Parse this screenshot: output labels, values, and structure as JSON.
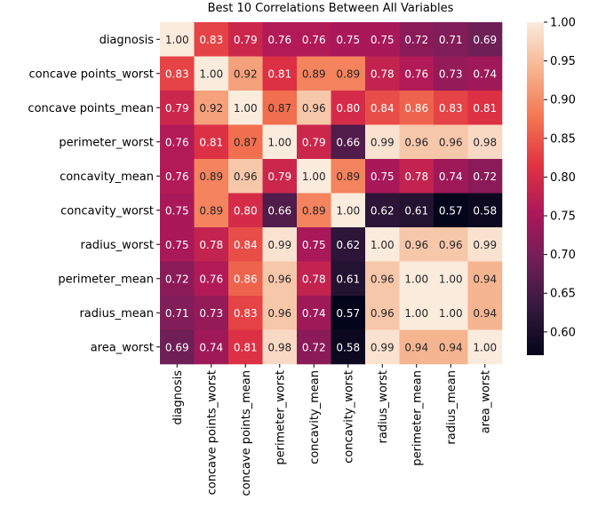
{
  "chart_data": {
    "type": "heatmap",
    "title": "Best 10 Correlations Between All Variables",
    "row_labels": [
      "diagnosis",
      "concave points_worst",
      "concave points_mean",
      "perimeter_worst",
      "concavity_mean",
      "concavity_worst",
      "radius_worst",
      "perimeter_mean",
      "radius_mean",
      "area_worst"
    ],
    "col_labels": [
      "diagnosis",
      "concave points_worst",
      "concave points_mean",
      "perimeter_worst",
      "concavity_mean",
      "concavity_worst",
      "radius_worst",
      "perimeter_mean",
      "radius_mean",
      "area_worst"
    ],
    "values": [
      [
        1.0,
        0.83,
        0.79,
        0.76,
        0.76,
        0.75,
        0.75,
        0.72,
        0.71,
        0.69
      ],
      [
        0.83,
        1.0,
        0.92,
        0.81,
        0.89,
        0.89,
        0.78,
        0.76,
        0.73,
        0.74
      ],
      [
        0.79,
        0.92,
        1.0,
        0.87,
        0.96,
        0.8,
        0.84,
        0.86,
        0.83,
        0.81
      ],
      [
        0.76,
        0.81,
        0.87,
        1.0,
        0.79,
        0.66,
        0.99,
        0.96,
        0.96,
        0.98
      ],
      [
        0.76,
        0.89,
        0.96,
        0.79,
        1.0,
        0.89,
        0.75,
        0.78,
        0.74,
        0.72
      ],
      [
        0.75,
        0.89,
        0.8,
        0.66,
        0.89,
        1.0,
        0.62,
        0.61,
        0.57,
        0.58
      ],
      [
        0.75,
        0.78,
        0.84,
        0.99,
        0.75,
        0.62,
        1.0,
        0.96,
        0.96,
        0.99
      ],
      [
        0.72,
        0.76,
        0.86,
        0.96,
        0.78,
        0.61,
        0.96,
        1.0,
        1.0,
        0.94
      ],
      [
        0.71,
        0.73,
        0.83,
        0.96,
        0.74,
        0.57,
        0.96,
        1.0,
        1.0,
        0.94
      ],
      [
        0.69,
        0.74,
        0.81,
        0.98,
        0.72,
        0.58,
        0.99,
        0.94,
        0.94,
        1.0
      ]
    ],
    "colorbar": {
      "vmin": 0.57,
      "vmax": 1.0,
      "ticks": [
        0.6,
        0.65,
        0.7,
        0.75,
        0.8,
        0.85,
        0.9,
        0.95,
        1.0
      ],
      "tick_labels": [
        "0.60",
        "0.65",
        "0.70",
        "0.75",
        "0.80",
        "0.85",
        "0.90",
        "0.95",
        "1.00"
      ],
      "placement": "right"
    },
    "colormap": "rocket",
    "colormap_stops": [
      "#03051a",
      "#35193e",
      "#701f57",
      "#ad1759",
      "#e13342",
      "#f37651",
      "#f6b48f",
      "#faebdd"
    ]
  }
}
